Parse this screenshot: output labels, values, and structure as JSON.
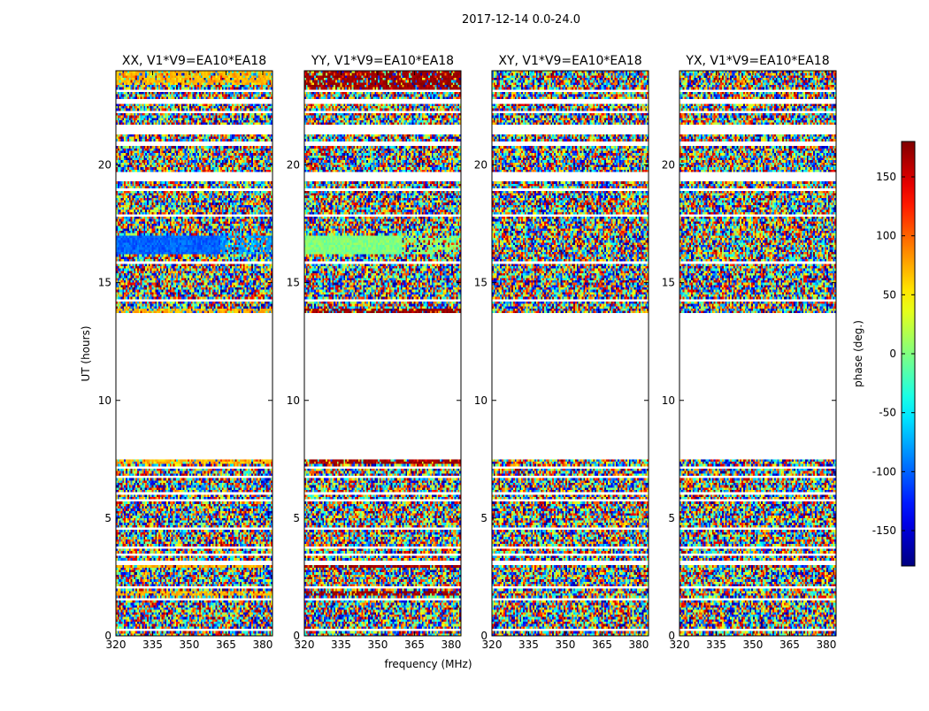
{
  "chart_data": {
    "type": "heatmap",
    "title": "2017-12-14 0.0-24.0",
    "xlabel": "frequency (MHz)",
    "ylabel": "UT (hours)",
    "xlim": [
      320,
      384
    ],
    "ylim": [
      0,
      24
    ],
    "x_ticks": [
      320,
      335,
      350,
      365,
      380
    ],
    "y_ticks": [
      0,
      5,
      10,
      15,
      20
    ],
    "panels": [
      {
        "title": "XX, V1*V9=EA10*EA18",
        "mode": "xx"
      },
      {
        "title": "YY, V1*V9=EA10*EA18",
        "mode": "yy"
      },
      {
        "title": "XY, V1*V9=EA10*EA18",
        "mode": "noise"
      },
      {
        "title": "YX, V1*V9=EA10*EA18",
        "mode": "noise"
      }
    ],
    "data_time_ranges_hours": [
      [
        0.0,
        7.5
      ],
      [
        13.7,
        24.0
      ]
    ],
    "colorbar": {
      "label": "phase (deg.)",
      "range": [
        -180,
        180
      ],
      "ticks": [
        150,
        100,
        50,
        0,
        -50,
        -100,
        -150
      ],
      "colormap": "jet"
    }
  }
}
